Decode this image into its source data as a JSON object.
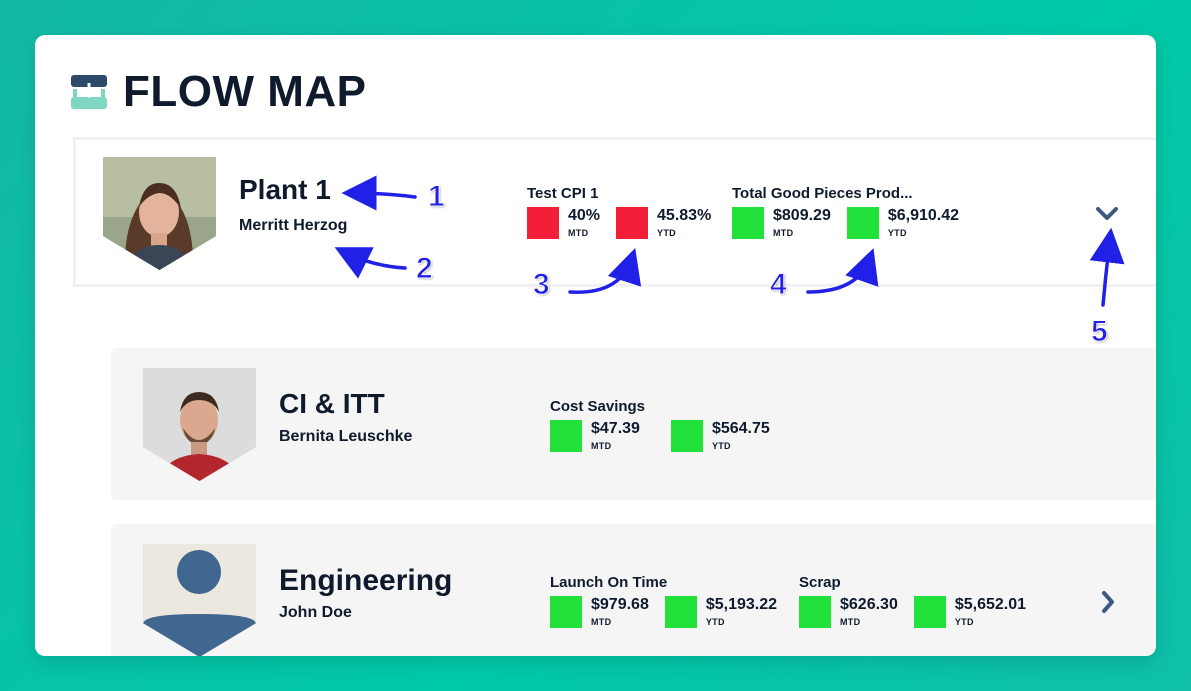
{
  "app": {
    "title": "FLOW MAP",
    "logo_icon": "flow-map-logo-icon"
  },
  "rows": [
    {
      "name": "Plant 1",
      "person": "Merritt Herzog",
      "toggle_icon": "chevron-down-icon",
      "metrics": [
        {
          "title": "Test CPI 1",
          "values": [
            {
              "value": "40%",
              "period": "MTD",
              "status": "red"
            },
            {
              "value": "45.83%",
              "period": "YTD",
              "status": "red"
            }
          ]
        },
        {
          "title": "Total Good Pieces Prod...",
          "values": [
            {
              "value": "$809.29",
              "period": "MTD",
              "status": "green"
            },
            {
              "value": "$6,910.42",
              "period": "YTD",
              "status": "green"
            }
          ]
        }
      ]
    },
    {
      "name": "CI & ITT",
      "person": "Bernita Leuschke",
      "metrics": [
        {
          "title": "Cost Savings",
          "values": [
            {
              "value": "$47.39",
              "period": "MTD",
              "status": "green"
            },
            {
              "value": "$564.75",
              "period": "YTD",
              "status": "green"
            }
          ]
        }
      ]
    },
    {
      "name": "Engineering",
      "person": "John Doe",
      "toggle_icon": "chevron-right-icon",
      "metrics": [
        {
          "title": "Launch On Time",
          "values": [
            {
              "value": "$979.68",
              "period": "MTD",
              "status": "green"
            },
            {
              "value": "$5,193.22",
              "period": "YTD",
              "status": "green"
            }
          ]
        },
        {
          "title": "Scrap",
          "values": [
            {
              "value": "$626.30",
              "period": "MTD",
              "status": "green"
            },
            {
              "value": "$5,652.01",
              "period": "YTD",
              "status": "green"
            }
          ]
        }
      ]
    }
  ],
  "annotations": [
    "1",
    "2",
    "3",
    "4",
    "5"
  ],
  "colors": {
    "red": "#f31e37",
    "green": "#22e13b",
    "text": "#0f1b2d",
    "annotation": "#2020e6",
    "background": "#00c9a7"
  }
}
